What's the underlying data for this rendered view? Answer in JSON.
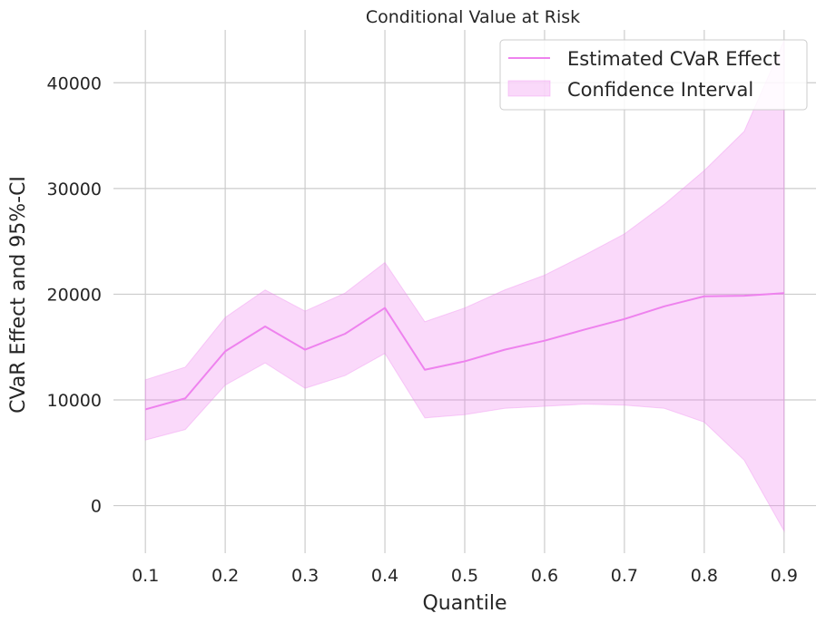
{
  "chart_data": {
    "type": "line",
    "title": "Conditional Value at Risk",
    "xlabel": "Quantile",
    "ylabel": "CVaR Effect and 95%-CI",
    "x": [
      0.1,
      0.15,
      0.2,
      0.25,
      0.3,
      0.35,
      0.4,
      0.45,
      0.5,
      0.55,
      0.6,
      0.65,
      0.7,
      0.75,
      0.8,
      0.85,
      0.9
    ],
    "series": [
      {
        "name": "Estimated CVaR Effect",
        "values": [
          9100,
          10150,
          14600,
          16950,
          14750,
          16250,
          18700,
          12850,
          13650,
          14750,
          15600,
          16650,
          17650,
          18850,
          19800,
          19850,
          20100
        ]
      }
    ],
    "band": {
      "name": "Confidence Interval",
      "lower": [
        6200,
        7200,
        11400,
        13500,
        11100,
        12300,
        14400,
        8300,
        8600,
        9200,
        9400,
        9600,
        9500,
        9200,
        7900,
        4300,
        -2400
      ],
      "upper": [
        11900,
        13100,
        17800,
        20400,
        18400,
        20100,
        23000,
        17400,
        18700,
        20400,
        21800,
        23700,
        25700,
        28500,
        31700,
        35400,
        44000
      ]
    },
    "xticks": [
      "0.1",
      "0.2",
      "0.3",
      "0.4",
      "0.5",
      "0.6",
      "0.7",
      "0.8",
      "0.9"
    ],
    "xtick_values": [
      0.1,
      0.2,
      0.3,
      0.4,
      0.5,
      0.6,
      0.7,
      0.8,
      0.9
    ],
    "yticks": [
      "0",
      "10000",
      "20000",
      "30000",
      "40000"
    ],
    "ytick_values": [
      0,
      10000,
      20000,
      30000,
      40000
    ],
    "xlim": [
      0.06,
      0.94
    ],
    "ylim": [
      -4500,
      45000
    ],
    "grid": true,
    "legend": "top-right",
    "colors": {
      "line": "#ee82ee",
      "band": "#ee82ee"
    }
  }
}
